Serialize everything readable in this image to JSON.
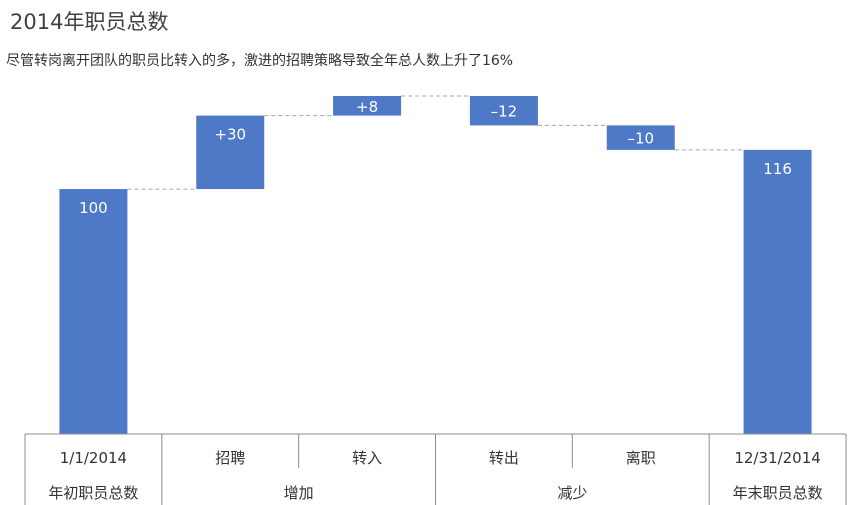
{
  "chart_data": {
    "type": "waterfall",
    "title": "2014年职员总数",
    "subtitle": "尽管转岗离开团队的职员比转入的多，激进的招聘策略导致全年总人数上升了16%",
    "bar_color": "#4E79C6",
    "categories": [
      "1/1/2014",
      "招聘",
      "转入",
      "转出",
      "离职",
      "12/31/2014"
    ],
    "groups": [
      "年初职员总数",
      "增加",
      "减少",
      "年末职员总数"
    ],
    "group_spans": [
      1,
      2,
      2,
      1
    ],
    "bars": [
      {
        "category": "1/1/2014",
        "kind": "total",
        "start": 0,
        "end": 100,
        "label": "100"
      },
      {
        "category": "招聘",
        "kind": "delta",
        "start": 100,
        "end": 130,
        "label": "+30"
      },
      {
        "category": "转入",
        "kind": "delta",
        "start": 130,
        "end": 138,
        "label": "+8"
      },
      {
        "category": "转出",
        "kind": "delta",
        "start": 138,
        "end": 126,
        "label": "–12"
      },
      {
        "category": "离职",
        "kind": "delta",
        "start": 126,
        "end": 116,
        "label": "–10"
      },
      {
        "category": "12/31/2014",
        "kind": "total",
        "start": 0,
        "end": 116,
        "label": "116"
      }
    ],
    "ylim": [
      0,
      138
    ],
    "grid": false,
    "legend": "none"
  }
}
